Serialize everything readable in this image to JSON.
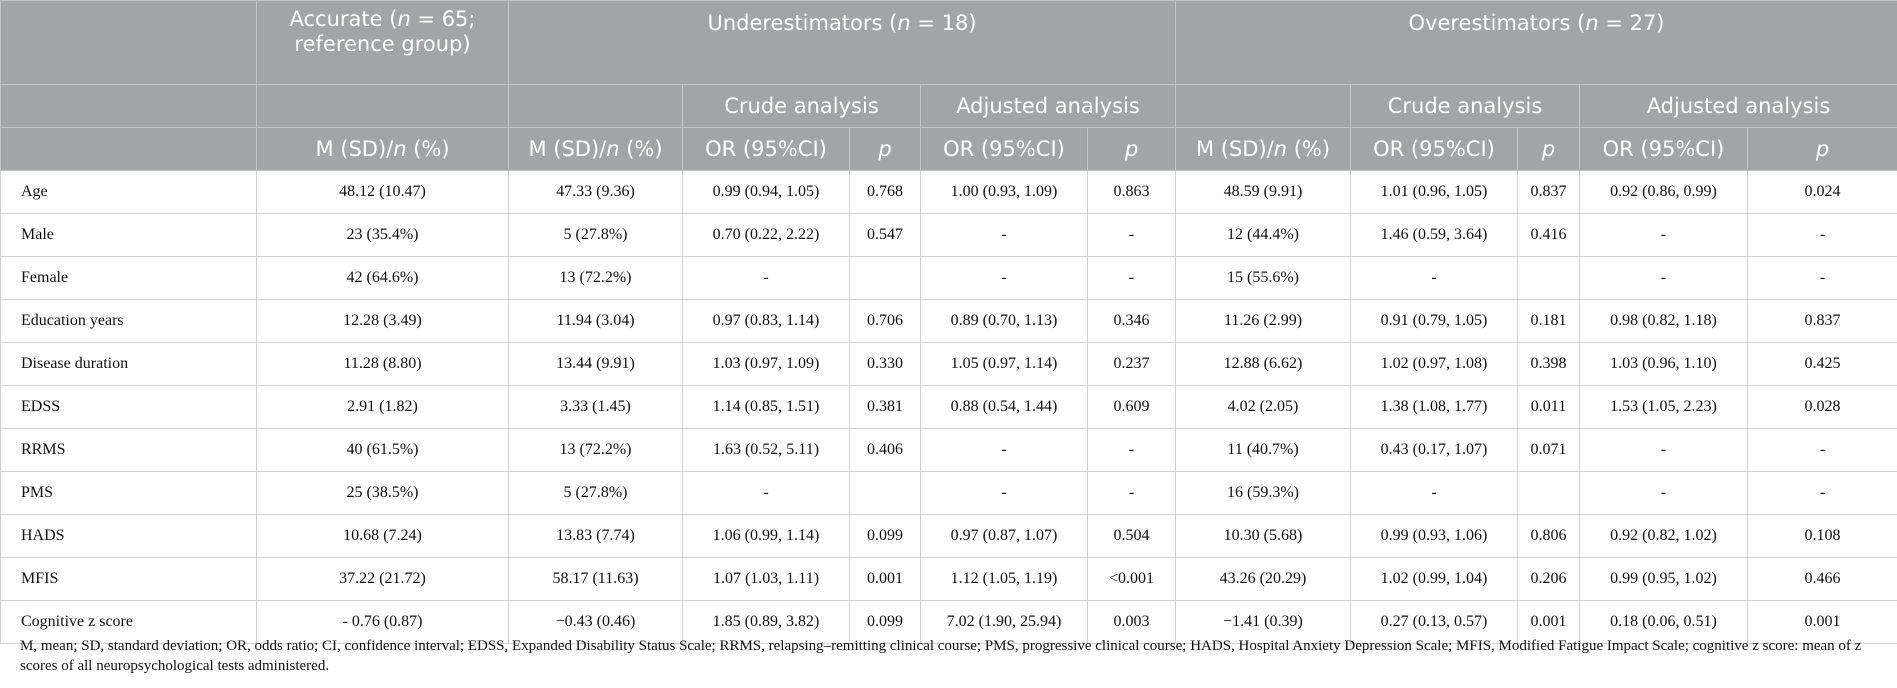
{
  "header": {
    "accurate_line1": "Accurate (",
    "accurate_n": "n",
    "accurate_line1_rest": " = 65;",
    "accurate_line2": "reference group)",
    "under_pre": "Underestimators (",
    "under_n": "n",
    "under_post": " = 18)",
    "over_pre": "Overestimators (",
    "over_n": "n",
    "over_post": " = 27)",
    "crude": "Crude analysis",
    "adjusted": "Adjusted analysis",
    "msd_pre": "M (SD)/",
    "msd_n": "n",
    "msd_post": " (%)",
    "or": "OR (95%CI)",
    "p": "p"
  },
  "rows": [
    {
      "var": "Age",
      "acc": "48.12 (10.47)",
      "u_m": "47.33 (9.36)",
      "u_cor": "0.99 (0.94, 1.05)",
      "u_cp": "0.768",
      "u_aor": "1.00 (0.93, 1.09)",
      "u_ap": "0.863",
      "o_m": "48.59 (9.91)",
      "o_cor": "1.01 (0.96, 1.05)",
      "o_cp": "0.837",
      "o_aor": "0.92 (0.86, 0.99)",
      "o_ap": "0.024"
    },
    {
      "var": "Male",
      "acc": "23 (35.4%)",
      "u_m": "5 (27.8%)",
      "u_cor": "0.70 (0.22, 2.22)",
      "u_cp": "0.547",
      "u_aor": "-",
      "u_ap": "-",
      "o_m": "12 (44.4%)",
      "o_cor": "1.46 (0.59, 3.64)",
      "o_cp": "0.416",
      "o_aor": "-",
      "o_ap": "-"
    },
    {
      "var": "Female",
      "acc": "42 (64.6%)",
      "u_m": "13 (72.2%)",
      "u_cor": "-",
      "u_cp": "",
      "u_aor": "-",
      "u_ap": "-",
      "o_m": "15 (55.6%)",
      "o_cor": "-",
      "o_cp": "",
      "o_aor": "-",
      "o_ap": "-"
    },
    {
      "var": "Education years",
      "acc": "12.28 (3.49)",
      "u_m": "11.94 (3.04)",
      "u_cor": "0.97 (0.83, 1.14)",
      "u_cp": "0.706",
      "u_aor": "0.89 (0.70, 1.13)",
      "u_ap": "0.346",
      "o_m": "11.26 (2.99)",
      "o_cor": "0.91 (0.79, 1.05)",
      "o_cp": "0.181",
      "o_aor": "0.98 (0.82, 1.18)",
      "o_ap": "0.837"
    },
    {
      "var": "Disease duration",
      "acc": "11.28 (8.80)",
      "u_m": "13.44 (9.91)",
      "u_cor": "1.03 (0.97, 1.09)",
      "u_cp": "0.330",
      "u_aor": "1.05 (0.97, 1.14)",
      "u_ap": "0.237",
      "o_m": "12.88 (6.62)",
      "o_cor": "1.02 (0.97, 1.08)",
      "o_cp": "0.398",
      "o_aor": "1.03 (0.96, 1.10)",
      "o_ap": "0.425"
    },
    {
      "var": "EDSS",
      "acc": "2.91 (1.82)",
      "u_m": "3.33 (1.45)",
      "u_cor": "1.14 (0.85, 1.51)",
      "u_cp": "0.381",
      "u_aor": "0.88 (0.54, 1.44)",
      "u_ap": "0.609",
      "o_m": "4.02 (2.05)",
      "o_cor": "1.38 (1.08, 1.77)",
      "o_cp": "0.011",
      "o_aor": "1.53 (1.05, 2.23)",
      "o_ap": "0.028"
    },
    {
      "var": "RRMS",
      "acc": "40 (61.5%)",
      "u_m": "13 (72.2%)",
      "u_cor": "1.63 (0.52, 5.11)",
      "u_cp": "0.406",
      "u_aor": "-",
      "u_ap": "-",
      "o_m": "11 (40.7%)",
      "o_cor": "0.43 (0.17, 1.07)",
      "o_cp": "0.071",
      "o_aor": "-",
      "o_ap": "-"
    },
    {
      "var": "PMS",
      "acc": "25 (38.5%)",
      "u_m": "5 (27.8%)",
      "u_cor": "-",
      "u_cp": "",
      "u_aor": "-",
      "u_ap": "-",
      "o_m": "16 (59.3%)",
      "o_cor": "-",
      "o_cp": "",
      "o_aor": "-",
      "o_ap": "-"
    },
    {
      "var": "HADS",
      "acc": "10.68 (7.24)",
      "u_m": "13.83 (7.74)",
      "u_cor": "1.06 (0.99, 1.14)",
      "u_cp": "0.099",
      "u_aor": "0.97 (0.87, 1.07)",
      "u_ap": "0.504",
      "o_m": "10.30 (5.68)",
      "o_cor": "0.99 (0.93, 1.06)",
      "o_cp": "0.806",
      "o_aor": "0.92 (0.82, 1.02)",
      "o_ap": "0.108"
    },
    {
      "var": "MFIS",
      "acc": "37.22 (21.72)",
      "u_m": "58.17 (11.63)",
      "u_cor": "1.07 (1.03, 1.11)",
      "u_cp": "0.001",
      "u_aor": "1.12 (1.05, 1.19)",
      "u_ap": "<0.001",
      "o_m": "43.26 (20.29)",
      "o_cor": "1.02 (0.99, 1.04)",
      "o_cp": "0.206",
      "o_aor": "0.99 (0.95, 1.02)",
      "o_ap": "0.466"
    },
    {
      "var": "Cognitive z score",
      "acc": "- 0.76 (0.87)",
      "u_m": "−0.43 (0.46)",
      "u_cor": "1.85 (0.89, 3.82)",
      "u_cp": "0.099",
      "u_aor": "7.02 (1.90, 25.94)",
      "u_ap": "0.003",
      "o_m": "−1.41 (0.39)",
      "o_cor": "0.27 (0.13, 0.57)",
      "o_cp": "0.001",
      "o_aor": "0.18 (0.06, 0.51)",
      "o_ap": "0.001"
    }
  ],
  "caption": "M, mean; SD, standard deviation; OR, odds ratio; CI, confidence interval; EDSS, Expanded Disability Status Scale; RRMS, relapsing–remitting clinical course; PMS, progressive clinical course; HADS, Hospital Anxiety Depression Scale; MFIS, Modified Fatigue Impact Scale; cognitive z score: mean of z scores of all neuropsychological tests administered."
}
